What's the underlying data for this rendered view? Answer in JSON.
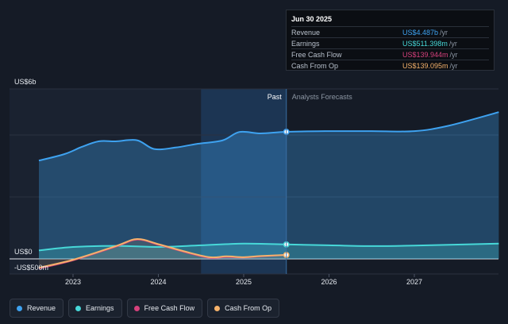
{
  "chart_data": {
    "type": "area",
    "y_axis": {
      "top_label": "US$6b",
      "zero_label": "US$0",
      "bottom_label": "-US$500m",
      "ylim": [
        -500,
        6000
      ]
    },
    "x_ticks": [
      "2023",
      "2024",
      "2025",
      "2026",
      "2027"
    ],
    "divider_labels": {
      "past": "Past",
      "forecast": "Analysts Forecasts"
    },
    "series": [
      {
        "name": "Revenue",
        "color": "#3ea2f0",
        "x": [
          2022.6,
          2022.9,
          2023.1,
          2023.3,
          2023.5,
          2023.75,
          2023.95,
          2024.2,
          2024.45,
          2024.75,
          2024.95,
          2025.2,
          2025.5,
          2026.0,
          2026.5,
          2027.0,
          2027.4,
          2027.99
        ],
        "values": [
          3470,
          3700,
          3950,
          4150,
          4150,
          4190,
          3880,
          3930,
          4060,
          4180,
          4480,
          4430,
          4487,
          4510,
          4510,
          4510,
          4700,
          5180
        ]
      },
      {
        "name": "Earnings",
        "color": "#47d8d8",
        "x": [
          2022.6,
          2023.0,
          2023.5,
          2024.0,
          2024.5,
          2025.0,
          2025.5,
          2026.0,
          2026.5,
          2027.0,
          2027.99
        ],
        "values": [
          300,
          420,
          460,
          420,
          480,
          540,
          511,
          480,
          450,
          470,
          540
        ]
      },
      {
        "name": "Free Cash Flow",
        "color": "#d6417c",
        "x": [
          2022.6,
          2023.0,
          2023.5,
          2023.75,
          2024.0,
          2024.3,
          2024.6,
          2024.8,
          2025.0,
          2025.2,
          2025.5
        ],
        "values": [
          -340,
          -50,
          430,
          680,
          500,
          250,
          40,
          70,
          50,
          90,
          140
        ]
      },
      {
        "name": "Cash From Op",
        "color": "#f5b26b",
        "x": [
          2022.6,
          2023.0,
          2023.5,
          2023.75,
          2024.0,
          2024.3,
          2024.6,
          2024.8,
          2025.0,
          2025.2,
          2025.5
        ],
        "values": [
          -310,
          -30,
          450,
          700,
          520,
          270,
          60,
          90,
          60,
          100,
          139
        ]
      }
    ],
    "highlight_x": 2025.5
  },
  "tooltip": {
    "date": "Jun 30 2025",
    "rows": [
      {
        "label": "Revenue",
        "value": "US$4.487b",
        "unit": "/yr",
        "color": "#3ea2f0"
      },
      {
        "label": "Earnings",
        "value": "US$511.398m",
        "unit": "/yr",
        "color": "#47d8d8"
      },
      {
        "label": "Free Cash Flow",
        "value": "US$139.944m",
        "unit": "/yr",
        "color": "#d6417c"
      },
      {
        "label": "Cash From Op",
        "value": "US$139.095m",
        "unit": "/yr",
        "color": "#f5b26b"
      }
    ]
  },
  "legend": [
    {
      "label": "Revenue",
      "color": "#3ea2f0"
    },
    {
      "label": "Earnings",
      "color": "#47d8d8"
    },
    {
      "label": "Free Cash Flow",
      "color": "#d6417c"
    },
    {
      "label": "Cash From Op",
      "color": "#f5b26b"
    }
  ]
}
